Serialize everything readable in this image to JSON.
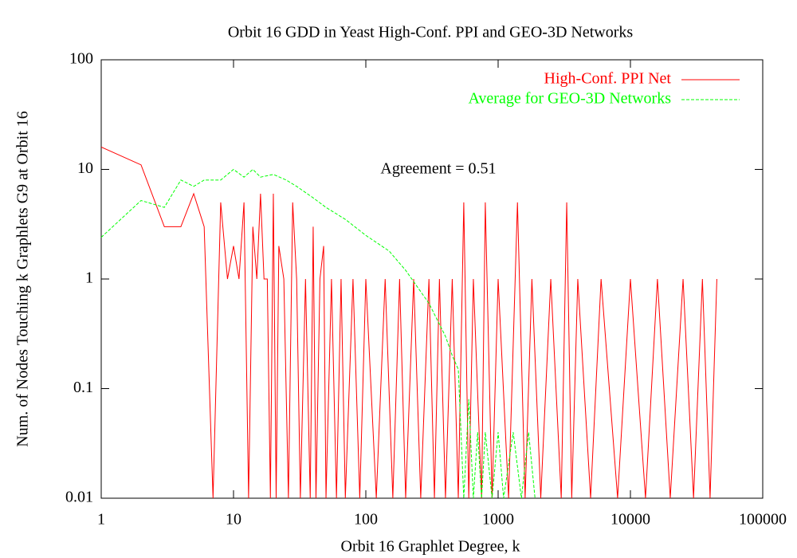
{
  "chart_data": {
    "type": "line",
    "title": "Orbit 16 GDD in Yeast High-Conf. PPI and GEO-3D Networks",
    "x_label": "Orbit 16 Graphlet Degree, k",
    "y_label": "Num. of Nodes Touching k Graphlets G9 at Orbit 16",
    "annotation": "Agreement = 0.51",
    "log_x": true,
    "log_y": true,
    "legend": "top-right",
    "xlim": [
      1,
      100000
    ],
    "xticks": [
      1,
      10,
      100,
      1000,
      10000,
      100000
    ],
    "ylim": [
      0.01,
      100
    ],
    "yticks": [
      0.01,
      0.1,
      1,
      10,
      100
    ],
    "series": [
      {
        "name": "High-Conf. PPI Net",
        "color": "#ff0000",
        "dash": "solid",
        "x": [
          1,
          2,
          3,
          4,
          5,
          6,
          7,
          8,
          9,
          10,
          11,
          12,
          13,
          14,
          15,
          16,
          17,
          18,
          19,
          20,
          21,
          22,
          24,
          26,
          28,
          30,
          32,
          35,
          38,
          40,
          42,
          45,
          48,
          50,
          55,
          60,
          65,
          70,
          80,
          90,
          100,
          120,
          140,
          160,
          180,
          200,
          230,
          260,
          300,
          330,
          360,
          400,
          450,
          500,
          550,
          600,
          650,
          750,
          800,
          900,
          1000,
          1200,
          1400,
          1600,
          1800,
          2100,
          2500,
          3000,
          3300,
          3600,
          4000,
          5000,
          6000,
          8000,
          10000,
          13000,
          16000,
          20000,
          25000,
          30000,
          35000,
          40000,
          45000
        ],
        "values": [
          16,
          11,
          3,
          3,
          6,
          3,
          0,
          5,
          1,
          2,
          1,
          5,
          0,
          3,
          1,
          6,
          1,
          1,
          0,
          6,
          0,
          2,
          1,
          0,
          5,
          1,
          0,
          1,
          0,
          3,
          0,
          1,
          2,
          0,
          1,
          0,
          1,
          0,
          1,
          0,
          1,
          0,
          1,
          0,
          1,
          0,
          1,
          0,
          1,
          0,
          1,
          0,
          1,
          0,
          5,
          0,
          1,
          0,
          5,
          0,
          1,
          0,
          5,
          0,
          1,
          0,
          1,
          0,
          5,
          0,
          1,
          0,
          1,
          0,
          1,
          0,
          1,
          0,
          1,
          0,
          1,
          0,
          1
        ]
      },
      {
        "name": "Average for GEO-3D Networks",
        "color": "#00ff00",
        "dash": "dashed",
        "x": [
          1,
          2,
          3,
          4,
          5,
          6,
          8,
          10,
          12,
          14,
          16,
          20,
          25,
          30,
          40,
          50,
          70,
          100,
          150,
          200,
          300,
          400,
          450,
          500,
          550,
          600,
          650,
          700,
          750,
          800,
          900,
          1000,
          1100,
          1300,
          1500,
          1700,
          1900
        ],
        "values": [
          2.4,
          5.2,
          4.5,
          8,
          7,
          8,
          8,
          10,
          8.5,
          10,
          8.5,
          9,
          8,
          7,
          5.5,
          4.5,
          3.5,
          2.5,
          1.8,
          1.2,
          0.6,
          0.3,
          0.2,
          0.15,
          0,
          0.08,
          0,
          0.04,
          0,
          0.04,
          0,
          0.04,
          0,
          0.04,
          0,
          0.04,
          0
        ]
      }
    ]
  }
}
